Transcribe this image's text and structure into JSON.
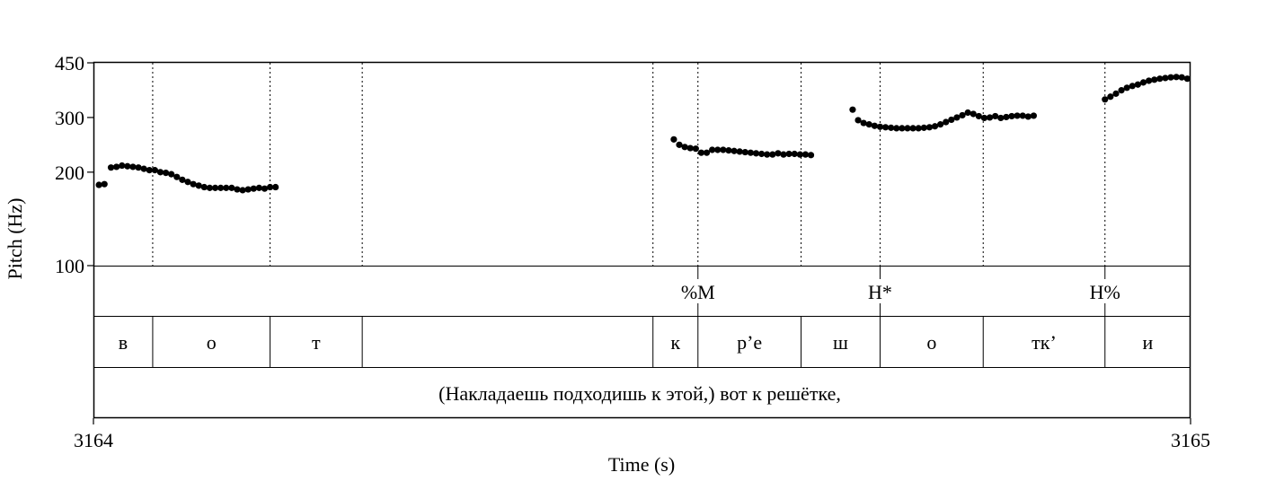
{
  "chart_data": {
    "type": "scatter",
    "title": "",
    "xlabel": "Time (s)",
    "ylabel": "Pitch (Hz)",
    "x_range": [
      3164,
      3165
    ],
    "y_range": [
      100,
      450
    ],
    "y_scale": "log",
    "x_ticks": [
      "3164",
      "3165"
    ],
    "y_ticks": [
      {
        "value": 100,
        "label": "100"
      },
      {
        "value": 200,
        "label": "200"
      },
      {
        "value": 300,
        "label": "300"
      },
      {
        "value": 450,
        "label": "450"
      }
    ],
    "series": [
      {
        "points": [
          [
            3164.005,
            182
          ],
          [
            3164.01,
            183
          ],
          [
            3164.016,
            207
          ],
          [
            3164.021,
            208
          ],
          [
            3164.026,
            210
          ],
          [
            3164.031,
            209
          ],
          [
            3164.036,
            208
          ],
          [
            3164.041,
            207
          ],
          [
            3164.046,
            205
          ],
          [
            3164.051,
            203
          ],
          [
            3164.056,
            203
          ],
          [
            3164.061,
            200
          ],
          [
            3164.066,
            199
          ],
          [
            3164.071,
            197
          ],
          [
            3164.076,
            193
          ],
          [
            3164.081,
            189
          ],
          [
            3164.086,
            186
          ],
          [
            3164.091,
            183
          ],
          [
            3164.096,
            181
          ],
          [
            3164.101,
            179
          ],
          [
            3164.106,
            178
          ],
          [
            3164.111,
            178
          ],
          [
            3164.116,
            178
          ],
          [
            3164.121,
            178
          ],
          [
            3164.126,
            178
          ],
          [
            3164.131,
            176
          ],
          [
            3164.136,
            175
          ],
          [
            3164.141,
            176
          ],
          [
            3164.146,
            177
          ],
          [
            3164.151,
            178
          ],
          [
            3164.156,
            177
          ],
          [
            3164.161,
            179
          ],
          [
            3164.166,
            179
          ],
          [
            3164.529,
            255
          ],
          [
            3164.534,
            245
          ],
          [
            3164.539,
            241
          ],
          [
            3164.544,
            239
          ],
          [
            3164.549,
            238
          ],
          [
            3164.554,
            231
          ],
          [
            3164.559,
            231
          ],
          [
            3164.564,
            236
          ],
          [
            3164.569,
            236
          ],
          [
            3164.574,
            236
          ],
          [
            3164.579,
            235
          ],
          [
            3164.584,
            234
          ],
          [
            3164.589,
            233
          ],
          [
            3164.594,
            232
          ],
          [
            3164.599,
            231
          ],
          [
            3164.604,
            230
          ],
          [
            3164.609,
            229
          ],
          [
            3164.614,
            228
          ],
          [
            3164.619,
            228
          ],
          [
            3164.624,
            230
          ],
          [
            3164.629,
            228
          ],
          [
            3164.634,
            229
          ],
          [
            3164.639,
            229
          ],
          [
            3164.644,
            228
          ],
          [
            3164.649,
            228
          ],
          [
            3164.654,
            227
          ],
          [
            3164.692,
            318
          ],
          [
            3164.697,
            294
          ],
          [
            3164.702,
            288
          ],
          [
            3164.707,
            285
          ],
          [
            3164.712,
            282
          ],
          [
            3164.717,
            280
          ],
          [
            3164.722,
            279
          ],
          [
            3164.727,
            278
          ],
          [
            3164.732,
            277
          ],
          [
            3164.737,
            277
          ],
          [
            3164.742,
            277
          ],
          [
            3164.747,
            277
          ],
          [
            3164.752,
            277
          ],
          [
            3164.757,
            278
          ],
          [
            3164.762,
            279
          ],
          [
            3164.767,
            281
          ],
          [
            3164.772,
            285
          ],
          [
            3164.777,
            290
          ],
          [
            3164.782,
            295
          ],
          [
            3164.787,
            300
          ],
          [
            3164.792,
            305
          ],
          [
            3164.797,
            311
          ],
          [
            3164.802,
            308
          ],
          [
            3164.807,
            303
          ],
          [
            3164.812,
            299
          ],
          [
            3164.817,
            300
          ],
          [
            3164.822,
            303
          ],
          [
            3164.827,
            299
          ],
          [
            3164.832,
            301
          ],
          [
            3164.837,
            303
          ],
          [
            3164.842,
            304
          ],
          [
            3164.847,
            304
          ],
          [
            3164.852,
            302
          ],
          [
            3164.857,
            304
          ],
          [
            3164.922,
            343
          ],
          [
            3164.927,
            350
          ],
          [
            3164.932,
            358
          ],
          [
            3164.937,
            367
          ],
          [
            3164.942,
            374
          ],
          [
            3164.947,
            379
          ],
          [
            3164.952,
            383
          ],
          [
            3164.957,
            389
          ],
          [
            3164.962,
            394
          ],
          [
            3164.967,
            397
          ],
          [
            3164.972,
            400
          ],
          [
            3164.977,
            402
          ],
          [
            3164.982,
            404
          ],
          [
            3164.987,
            405
          ],
          [
            3164.992,
            404
          ],
          [
            3164.997,
            400
          ]
        ]
      }
    ],
    "tone_tier": {
      "boundaries": [
        3164.551,
        3164.717,
        3164.922
      ],
      "labels": [
        {
          "t": 3164.551,
          "text": "%M"
        },
        {
          "t": 3164.717,
          "text": "H*"
        },
        {
          "t": 3164.922,
          "text": "H%"
        }
      ]
    },
    "segment_tier": {
      "intervals": [
        {
          "start": 3164.0,
          "end": 3164.054,
          "text": "в"
        },
        {
          "start": 3164.054,
          "end": 3164.161,
          "text": "о"
        },
        {
          "start": 3164.161,
          "end": 3164.245,
          "text": "т"
        },
        {
          "start": 3164.245,
          "end": 3164.51,
          "text": ""
        },
        {
          "start": 3164.51,
          "end": 3164.551,
          "text": "к"
        },
        {
          "start": 3164.551,
          "end": 3164.645,
          "text": "р’е"
        },
        {
          "start": 3164.645,
          "end": 3164.717,
          "text": "ш"
        },
        {
          "start": 3164.717,
          "end": 3164.811,
          "text": "о"
        },
        {
          "start": 3164.811,
          "end": 3164.922,
          "text": "тк’"
        },
        {
          "start": 3164.922,
          "end": 3165.0,
          "text": "и"
        }
      ]
    },
    "sentence_tier": {
      "text": "(Накладаешь подходишь к этой,) вот к решётке,"
    },
    "marker_color": "#000000"
  }
}
